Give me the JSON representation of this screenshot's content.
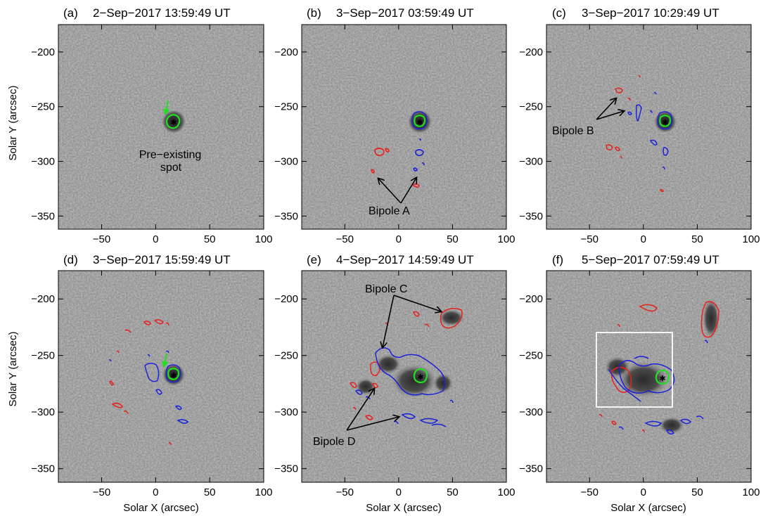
{
  "figure": {
    "xlabel": "Solar X (arcsec)",
    "ylabel": "Solar Y (arcsec)",
    "x_ticks": [
      "−50",
      "0",
      "50",
      "100"
    ],
    "y_ticks": [
      "−200",
      "−250",
      "−300",
      "−350"
    ],
    "panels": [
      {
        "label": "(a)",
        "time": "2−Sep−2017 13:59:49 UT"
      },
      {
        "label": "(b)",
        "time": "3−Sep−2017 03:59:49 UT"
      },
      {
        "label": "(c)",
        "time": "3−Sep−2017 10:29:49 UT"
      },
      {
        "label": "(d)",
        "time": "3−Sep−2017 15:59:49 UT"
      },
      {
        "label": "(e)",
        "time": "4−Sep−2017 14:59:49 UT"
      },
      {
        "label": "(f)",
        "time": "5−Sep−2017 07:59:49 UT"
      }
    ],
    "annotations": {
      "pre_existing_line1": "Pre−existing",
      "pre_existing_line2": "spot",
      "bipole_a": "Bipole A",
      "bipole_b": "Bipole B",
      "bipole_c": "Bipole C",
      "bipole_d": "Bipole D"
    }
  },
  "colors": {
    "background_gray": "#8f8f8f",
    "positive_contour": "#e8201c",
    "negative_contour": "#1a22d8",
    "spot_contour": "#22dd22",
    "box": "#ffffff"
  }
}
